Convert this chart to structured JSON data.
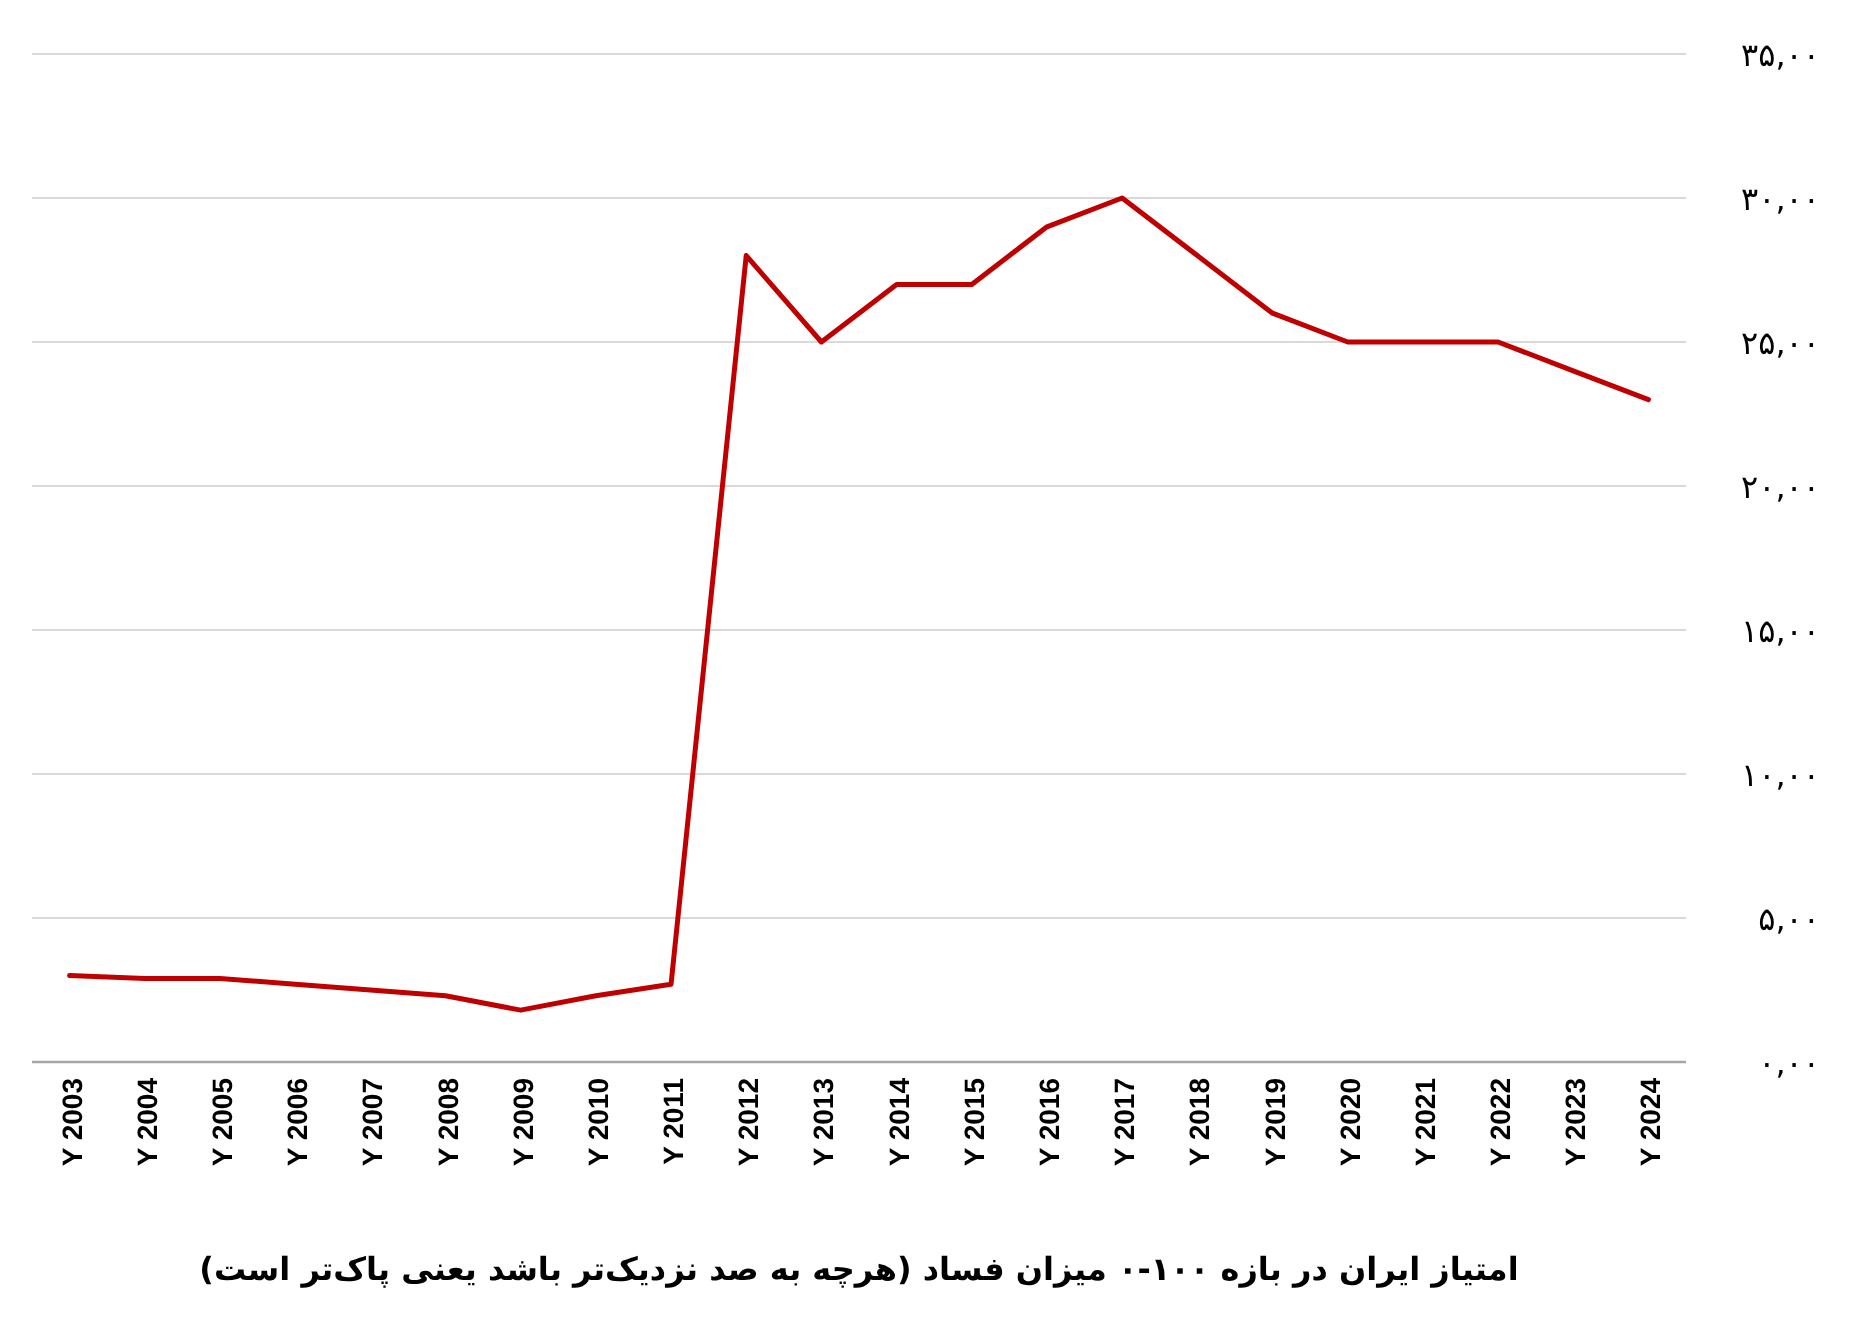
{
  "chart_data": {
    "type": "line",
    "xlabel": "امتیاز ایران در بازه ۱۰۰-۰ میزان فساد (هرچه به صد نزدیک‌تر باشد یعنی پاک‌تر است)",
    "categories": [
      "Y 2003",
      "Y 2004",
      "Y 2005",
      "Y 2006",
      "Y 2007",
      "Y 2008",
      "Y 2009",
      "Y 2010",
      "Y 2011",
      "Y 2012",
      "Y 2013",
      "Y 2014",
      "Y 2015",
      "Y 2016",
      "Y 2017",
      "Y 2018",
      "Y 2019",
      "Y 2020",
      "Y 2021",
      "Y 2022",
      "Y 2023",
      "Y 2024"
    ],
    "series": [
      {
        "color": "#c00000",
        "values": [
          3.0,
          2.9,
          2.9,
          2.7,
          2.5,
          2.3,
          1.8,
          2.3,
          2.7,
          28,
          25,
          27,
          27,
          29,
          30,
          28,
          26,
          25,
          25,
          25,
          24,
          23
        ]
      }
    ],
    "ylim": [
      0,
      35
    ],
    "yticks": [
      {
        "value": 0,
        "label": "۰,۰۰"
      },
      {
        "value": 5,
        "label": "۵,۰۰"
      },
      {
        "value": 10,
        "label": "۱۰,۰۰"
      },
      {
        "value": 15,
        "label": "۱۵,۰۰"
      },
      {
        "value": 20,
        "label": "۲۰,۰۰"
      },
      {
        "value": 25,
        "label": "۲۵,۰۰"
      },
      {
        "value": 30,
        "label": "۳۰,۰۰"
      },
      {
        "value": 35,
        "label": "۳۵,۰۰"
      }
    ],
    "grid": "y"
  }
}
